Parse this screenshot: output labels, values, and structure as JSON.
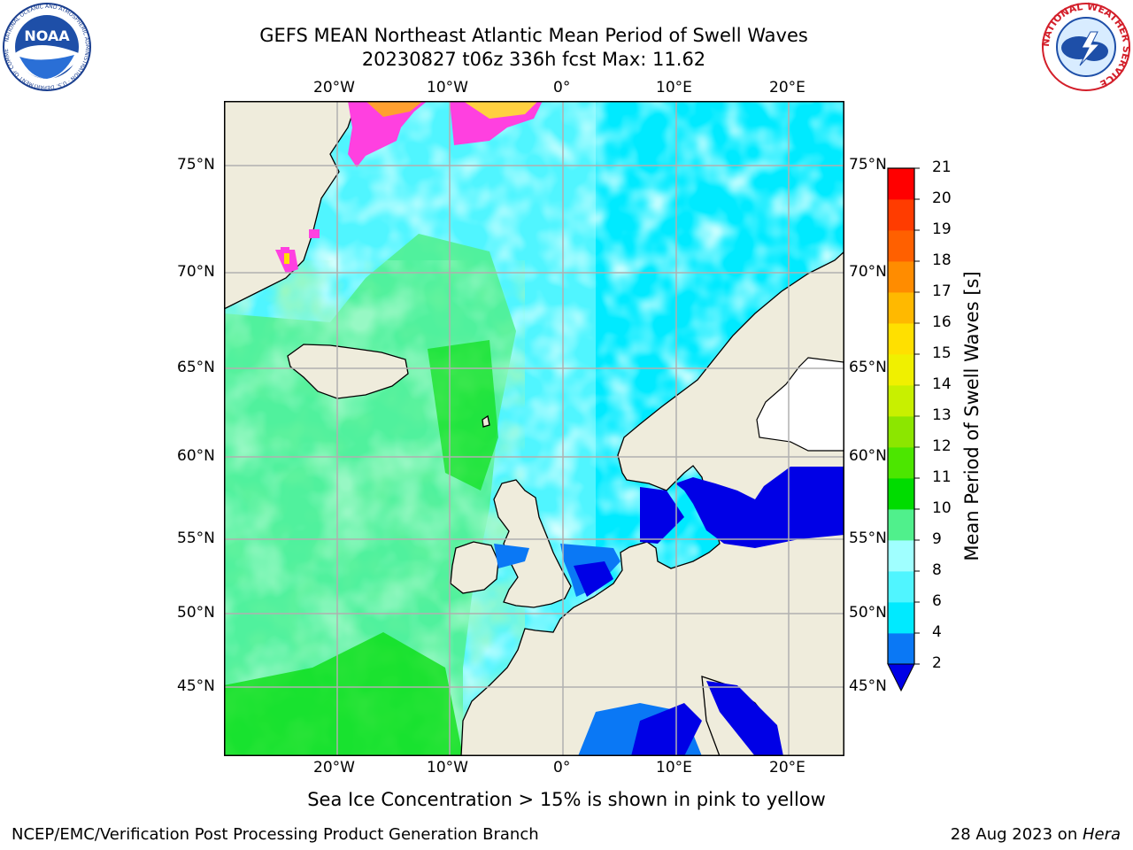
{
  "title": {
    "line1": "GEFS MEAN Northeast Atlantic Mean Period of Swell Waves",
    "line2": "20230827 t06z 336h fcst   Max: 11.62"
  },
  "logos": {
    "left": {
      "name": "noaa-logo",
      "text": "NOAA",
      "ring_text": "NATIONAL OCEANIC AND ATMOSPHERIC ADMINISTRATION · U.S. DEPARTMENT OF COMMERCE"
    },
    "right": {
      "name": "nws-logo",
      "ring_text": "NATIONAL WEATHER SERVICE"
    }
  },
  "map": {
    "longitude_labels": [
      "20°W",
      "10°W",
      "0°",
      "10°E",
      "20°E"
    ],
    "latitude_labels": [
      "75°N",
      "70°N",
      "65°N",
      "60°N",
      "55°N",
      "50°N",
      "45°N"
    ],
    "land_color": "#efecdc",
    "grid_color": "#b0b0b0",
    "ice_note": "Sea Ice Concentration > 15% is shown in pink to yellow"
  },
  "colorbar": {
    "label": "Mean Period of Swell Waves [s]",
    "ticks": [
      "2",
      "4",
      "6",
      "8",
      "9",
      "10",
      "11",
      "12",
      "13",
      "14",
      "15",
      "16",
      "17",
      "18",
      "19",
      "20",
      "21"
    ],
    "colors": [
      "#0a78f5",
      "#00eaff",
      "#50f5ff",
      "#a0ffff",
      "#50f08c",
      "#00dc00",
      "#4ce600",
      "#8ce600",
      "#c8f000",
      "#f0f000",
      "#ffe000",
      "#ffb900",
      "#ff8c00",
      "#ff6000",
      "#ff3c00",
      "#ff0000"
    ],
    "under_color": "#0000e6"
  },
  "footer": {
    "left": "NCEP/EMC/Verification Post Processing Product Generation Branch",
    "right_date": "28 Aug 2023 on ",
    "right_host": "Hera"
  }
}
